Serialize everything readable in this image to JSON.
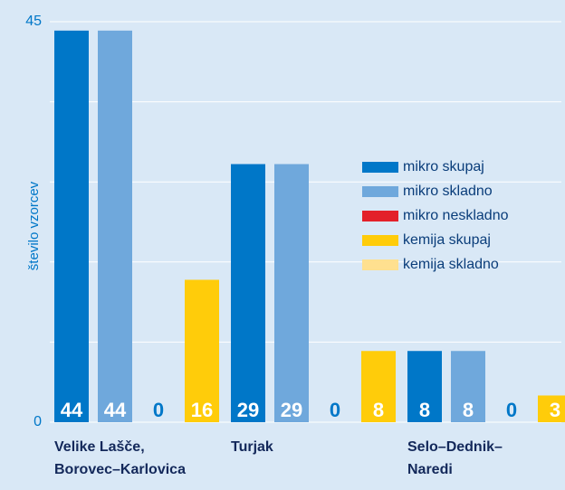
{
  "chart_data": {
    "type": "bar",
    "y_label": "število vzorcev",
    "categories": [
      [
        "Velike Lašče,",
        "Borovec–Karlovica"
      ],
      [
        "Turjak"
      ],
      [
        "Selo–Dednik–",
        "Naredi"
      ]
    ],
    "series": [
      {
        "name": "mikro skupaj",
        "color": "#0077c8",
        "values": [
          44,
          29,
          8
        ]
      },
      {
        "name": "mikro skladno",
        "color": "#6fa8dc",
        "values": [
          44,
          29,
          8
        ]
      },
      {
        "name": "mikro neskladno",
        "color": "#e3202a",
        "values": [
          0,
          0,
          0
        ]
      },
      {
        "name": "kemija skupaj",
        "color": "#ffcc0a",
        "values": [
          16,
          8,
          3
        ]
      },
      {
        "name": "kemija skladno",
        "color": "#ffe08f",
        "values": [
          null,
          null,
          null
        ]
      }
    ],
    "ylim": [
      0,
      45
    ],
    "yticks": [
      0,
      45
    ],
    "grid_values": [
      0,
      9,
      18,
      27,
      36,
      45
    ],
    "grid": true
  }
}
